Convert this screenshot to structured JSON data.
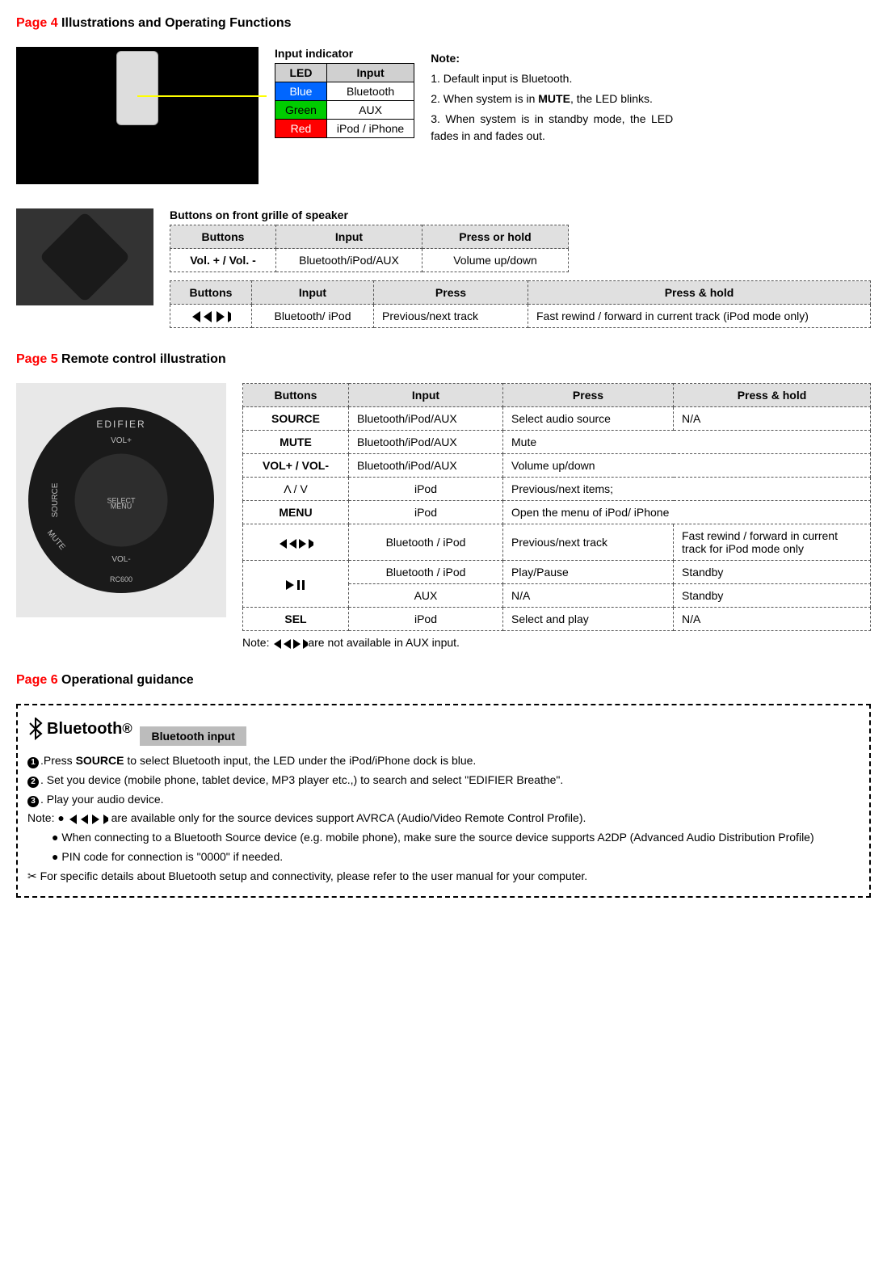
{
  "page4": {
    "label": "Page 4",
    "title": "Illustrations and Operating Functions",
    "indicator_title": "Input indicator",
    "indicator_headers": {
      "led": "LED",
      "input": "Input"
    },
    "indicator_rows": [
      {
        "led": "Blue",
        "input": "Bluetooth",
        "class": "cell-blue"
      },
      {
        "led": "Green",
        "input": "AUX",
        "class": "cell-green"
      },
      {
        "led": "Red",
        "input": "iPod / iPhone",
        "class": "cell-red"
      }
    ],
    "note_title": "Note:",
    "notes": [
      "1. Default input is Bluetooth.",
      "2. When system is in <b>MUTE</b>, the LED blinks.",
      "3. When system is in standby mode, the LED fades in and fades out."
    ],
    "buttons_title": "Buttons on front grille of speaker",
    "t1_headers": {
      "buttons": "Buttons",
      "input": "Input",
      "press": "Press or hold"
    },
    "t1_row": {
      "buttons": "Vol. + / Vol. -",
      "input": "Bluetooth/iPod/AUX",
      "press": "Volume up/down"
    },
    "t2_headers": {
      "buttons": "Buttons",
      "input": "Input",
      "press": "Press",
      "hold": "Press & hold"
    },
    "t2_row": {
      "input": "Bluetooth/ iPod",
      "press": "Previous/next track",
      "hold": "Fast rewind / forward in current track (iPod mode only)"
    }
  },
  "page5": {
    "label": "Page 5",
    "title": "Remote control illustration",
    "headers": {
      "buttons": "Buttons",
      "input": "Input",
      "press": "Press",
      "hold": "Press & hold"
    },
    "rows": [
      {
        "b": "SOURCE",
        "i": "Bluetooth/iPod/AUX",
        "p": "Select audio source",
        "h": "N/A"
      },
      {
        "b": "MUTE",
        "i": "Bluetooth/iPod/AUX",
        "p": "Mute",
        "span": true
      },
      {
        "b": "VOL+ / VOL-",
        "i": "Bluetooth/iPod/AUX",
        "p": "Volume up/down",
        "span": true
      },
      {
        "b": "Λ / V",
        "i": "iPod",
        "p": "Previous/next items;",
        "span": true
      },
      {
        "b": "MENU",
        "i": "iPod",
        "p": "Open the menu of iPod/ iPhone",
        "span": true
      },
      {
        "b": "icon-track2",
        "i": "Bluetooth / iPod",
        "p": "Previous/next track",
        "h": "Fast rewind / forward in current track for iPod mode only"
      },
      {
        "b": "icon-playpause",
        "i": "Bluetooth / iPod",
        "p": "Play/Pause",
        "h": "Standby",
        "rowspan": 2
      },
      {
        "i": "AUX",
        "p": "N/A",
        "h": "Standby"
      },
      {
        "b": "SEL",
        "i": "iPod",
        "p": "Select and play",
        "h": "N/A"
      }
    ],
    "note": "are not available in AUX input.",
    "note_prefix": "Note:"
  },
  "page6": {
    "label": "Page 6",
    "title": "Operational guidance",
    "bt_label": "Bluetooth",
    "bt_badge": "Bluetooth input",
    "steps": [
      ".Press <b>SOURCE</b> to select Bluetooth input, the LED under the iPod/iPhone dock is blue.",
      ". Set you device (mobile phone, tablet device, MP3 player etc.,) to search and select \"EDIFIER Breathe\".",
      ". Play your audio device."
    ],
    "note_bullets": [
      " are available only for the source devices support AVRCA (Audio/Video Remote Control Profile).",
      "When connecting to a Bluetooth Source device (e.g. mobile phone), make sure the source device supports A2DP (Advanced Audio Distribution Profile)",
      "PIN code for connection is \"0000\" if needed."
    ],
    "note_label": "Note: ●",
    "final": "For specific details about Bluetooth setup and connectivity, please refer to the user manual for your computer."
  },
  "remote_labels": {
    "brand": "EDIFIER",
    "volplus": "VOL+",
    "volminus": "VOL-",
    "source": "SOURCE",
    "mute": "MUTE",
    "menu": "MENU",
    "select": "SELECT",
    "model": "RC600"
  }
}
